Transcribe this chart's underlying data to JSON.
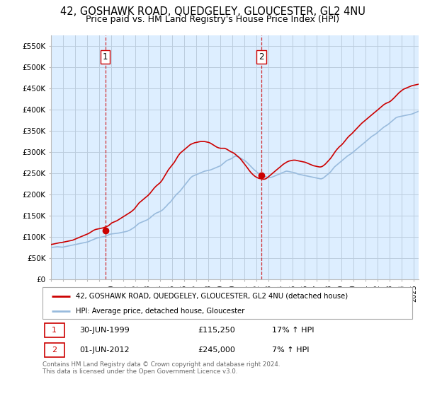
{
  "title": "42, GOSHAWK ROAD, QUEDGELEY, GLOUCESTER, GL2 4NU",
  "subtitle": "Price paid vs. HM Land Registry's House Price Index (HPI)",
  "title_fontsize": 10.5,
  "subtitle_fontsize": 9,
  "ylim": [
    0,
    575000
  ],
  "yticks": [
    0,
    50000,
    100000,
    150000,
    200000,
    250000,
    300000,
    350000,
    400000,
    450000,
    500000,
    550000
  ],
  "ytick_labels": [
    "£0",
    "£50K",
    "£100K",
    "£150K",
    "£200K",
    "£250K",
    "£300K",
    "£350K",
    "£400K",
    "£450K",
    "£500K",
    "£550K"
  ],
  "purchase1_year": 1999,
  "purchase1_month": 6,
  "purchase1_day": 30,
  "purchase1_price": 115250,
  "purchase2_year": 2012,
  "purchase2_month": 6,
  "purchase2_day": 1,
  "purchase2_price": 245000,
  "legend_line1": "42, GOSHAWK ROAD, QUEDGELEY, GLOUCESTER, GL2 4NU (detached house)",
  "legend_line2": "HPI: Average price, detached house, Gloucester",
  "table_row1": [
    "1",
    "30-JUN-1999",
    "£115,250",
    "17% ↑ HPI"
  ],
  "table_row2": [
    "2",
    "01-JUN-2012",
    "£245,000",
    "7% ↑ HPI"
  ],
  "footer": "Contains HM Land Registry data © Crown copyright and database right 2024.\nThis data is licensed under the Open Government Licence v3.0.",
  "red_color": "#cc0000",
  "blue_color": "#99bbdd",
  "blue_fill": "#ddeeff",
  "vline_color": "#cc0000",
  "background_color": "#ddeeff",
  "grid_color": "#bbccdd",
  "hpi_data_monthly": {
    "start_year": 1995,
    "start_month": 1,
    "values": [
      75000,
      75200,
      75500,
      75800,
      76000,
      76200,
      76500,
      76300,
      76100,
      75900,
      75700,
      75500,
      76000,
      76500,
      77000,
      77500,
      78000,
      78500,
      79000,
      79500,
      80000,
      80500,
      81000,
      81500,
      82000,
      82500,
      83000,
      83500,
      84000,
      84500,
      85000,
      85500,
      86000,
      86500,
      87000,
      87500,
      88000,
      89000,
      90000,
      91000,
      92000,
      93000,
      94000,
      95000,
      96000,
      97000,
      97500,
      98000,
      98500,
      99000,
      99500,
      100000,
      100500,
      101000,
      102000,
      103000,
      104000,
      105000,
      106000,
      106500,
      107000,
      107200,
      107500,
      107800,
      108000,
      108300,
      108700,
      109000,
      109500,
      110000,
      110500,
      111000,
      111500,
      112000,
      112500,
      113000,
      114000,
      115000,
      116000,
      117500,
      119000,
      120500,
      122000,
      124000,
      126000,
      128000,
      130000,
      132000,
      133000,
      134000,
      135000,
      136000,
      137000,
      138000,
      139000,
      140000,
      141500,
      143000,
      145000,
      147000,
      149000,
      151000,
      153000,
      154500,
      156000,
      157000,
      158000,
      159000,
      160000,
      161500,
      163000,
      165000,
      167500,
      170000,
      172000,
      175000,
      178000,
      180000,
      182000,
      185000,
      188000,
      191000,
      194000,
      197000,
      200000,
      202000,
      204000,
      206500,
      209000,
      212000,
      215000,
      218000,
      221000,
      224000,
      227000,
      230000,
      233000,
      236000,
      239000,
      241000,
      243000,
      244000,
      245000,
      246000,
      247000,
      248000,
      249000,
      250000,
      251000,
      252000,
      253000,
      254000,
      255000,
      255500,
      256000,
      256500,
      257000,
      257500,
      258000,
      259000,
      260000,
      261000,
      262000,
      263000,
      264000,
      265000,
      266000,
      267000,
      268000,
      270000,
      272000,
      274000,
      276000,
      278000,
      280000,
      281000,
      282000,
      283000,
      284000,
      285000,
      287000,
      288500,
      290000,
      290500,
      290000,
      289000,
      288000,
      287000,
      285500,
      284000,
      282500,
      281000,
      280000,
      278000,
      276000,
      273500,
      271000,
      268500,
      266000,
      263500,
      261000,
      259000,
      257000,
      255000,
      253000,
      251000,
      249000,
      247500,
      246000,
      245000,
      244000,
      243000,
      242000,
      241500,
      241000,
      240500,
      240000,
      240000,
      240500,
      241000,
      242000,
      243000,
      244000,
      245000,
      246000,
      247000,
      248000,
      249000,
      250000,
      251000,
      252000,
      253000,
      254000,
      255000,
      255000,
      254500,
      254000,
      253500,
      253000,
      252500,
      252000,
      251500,
      251000,
      250000,
      249000,
      248000,
      247500,
      247000,
      246500,
      246000,
      245500,
      245000,
      244500,
      244000,
      243500,
      243000,
      242500,
      242000,
      241500,
      241000,
      240500,
      240000,
      239500,
      239000,
      238500,
      238000,
      237500,
      237000,
      237000,
      238000,
      239000,
      241000,
      243000,
      245000,
      247000,
      249000,
      251000,
      253000,
      256000,
      259000,
      262000,
      265000,
      267000,
      269000,
      271000,
      273000,
      275000,
      277000,
      279000,
      281000,
      283000,
      285000,
      287000,
      289000,
      291000,
      292500,
      294000,
      295500,
      297000,
      299000,
      301000,
      303000,
      305000,
      307000,
      309000,
      311000,
      313000,
      315000,
      317000,
      319000,
      321000,
      323000,
      325000,
      327000,
      329000,
      331000,
      333000,
      335000,
      337000,
      338500,
      340000,
      341500,
      343000,
      345000,
      347000,
      349000,
      351000,
      353000,
      355000,
      357000,
      359000,
      360500,
      362000,
      363500,
      365000,
      367000,
      369000,
      371000,
      373000,
      375000,
      377000,
      379000,
      381000,
      382000,
      383000,
      383500,
      384000,
      384500,
      385000,
      385500,
      386000,
      386500,
      387000,
      387500,
      388000,
      388500,
      389000,
      389500,
      390000,
      391000,
      392000,
      393000,
      394000,
      395000,
      396000,
      397000,
      398000,
      399000,
      400000,
      401000,
      402000,
      403000,
      404000,
      405500,
      407000,
      409000,
      411000,
      413000,
      415000,
      417500,
      420000,
      422500,
      425000,
      427000,
      429000,
      431000,
      433000,
      435000,
      437000,
      439000,
      441000,
      442500,
      444000,
      445500,
      447000,
      448500,
      450000,
      451000,
      452000,
      453500,
      455000,
      457000,
      459000,
      461000,
      463000,
      465000,
      467000,
      469000,
      471000,
      472500,
      474000,
      475000,
      476000,
      476000,
      476000,
      475000,
      474000,
      472000,
      470000,
      468000,
      466000,
      464000,
      462500,
      461000,
      460000,
      459500,
      459000,
      458500,
      458000,
      457500,
      457000,
      456500,
      456000,
      455500,
      455000,
      454500,
      454000,
      453500,
      453000,
      452500,
      452000,
      451500,
      451000,
      451000,
      451000,
      452000,
      453000,
      454000,
      455000,
      456000,
      457000,
      458000,
      459000,
      460000,
      461000,
      462000
    ]
  },
  "price_data_monthly": {
    "start_year": 1995,
    "start_month": 1,
    "values": [
      82000,
      82500,
      83000,
      83500,
      84000,
      84500,
      85000,
      85500,
      86000,
      86200,
      86500,
      87000,
      87500,
      88000,
      88500,
      89000,
      89500,
      90000,
      90500,
      91000,
      91500,
      92000,
      93000,
      94000,
      95000,
      96000,
      97000,
      98000,
      99000,
      100000,
      101000,
      102000,
      103000,
      104000,
      105000,
      106000,
      107000,
      108000,
      109500,
      111000,
      112500,
      114000,
      115500,
      116500,
      117500,
      118000,
      118500,
      119000,
      119500,
      120000,
      120500,
      121000,
      121800,
      122500,
      123500,
      124500,
      125500,
      127000,
      129000,
      131000,
      133000,
      134000,
      135000,
      136000,
      137000,
      138000,
      139500,
      141000,
      142500,
      144000,
      145500,
      147000,
      148500,
      150000,
      151500,
      153000,
      154500,
      156000,
      157500,
      159000,
      161000,
      163000,
      165000,
      168000,
      171000,
      174000,
      177000,
      180000,
      182000,
      184000,
      186000,
      188000,
      190000,
      192000,
      194000,
      196000,
      198000,
      200500,
      203000,
      206000,
      209000,
      212000,
      215000,
      217500,
      220000,
      222000,
      224000,
      226000,
      228000,
      231000,
      234000,
      238000,
      242000,
      246000,
      250000,
      254000,
      258000,
      261000,
      264000,
      267000,
      270000,
      273000,
      276000,
      280000,
      284000,
      288000,
      292000,
      295000,
      298000,
      300000,
      302000,
      304000,
      306000,
      308000,
      310000,
      312000,
      314000,
      316000,
      318000,
      319000,
      320000,
      321000,
      322000,
      322500,
      323000,
      323500,
      324000,
      324500,
      325000,
      325000,
      325000,
      325000,
      325000,
      324500,
      324000,
      323500,
      323000,
      322000,
      321000,
      319500,
      318000,
      316500,
      315000,
      313500,
      312000,
      311000,
      310000,
      309500,
      309000,
      309000,
      309000,
      309000,
      309000,
      308000,
      307000,
      305500,
      304000,
      302500,
      301000,
      300000,
      299000,
      297500,
      296000,
      294000,
      292000,
      290000,
      288000,
      285500,
      283000,
      280000,
      277000,
      274000,
      271000,
      268000,
      265000,
      261500,
      258000,
      255000,
      252000,
      249500,
      247000,
      245000,
      243000,
      241500,
      240000,
      239000,
      238000,
      237500,
      237000,
      236500,
      236000,
      236000,
      236500,
      237500,
      239000,
      241000,
      243000,
      245000,
      247000,
      249000,
      251000,
      253000,
      255000,
      257000,
      259000,
      261000,
      263000,
      265000,
      267000,
      269000,
      271000,
      272500,
      274000,
      275500,
      277000,
      278000,
      279000,
      279500,
      280000,
      280500,
      281000,
      281000,
      281000,
      280500,
      280000,
      279500,
      279000,
      278500,
      278000,
      277500,
      277000,
      276500,
      276000,
      275000,
      274000,
      273000,
      272000,
      271000,
      270000,
      269000,
      268000,
      267500,
      267000,
      266500,
      266000,
      265500,
      265000,
      265000,
      265500,
      266500,
      268000,
      270000,
      272000,
      274500,
      277000,
      279500,
      282000,
      285000,
      288000,
      291500,
      295000,
      298500,
      302000,
      305000,
      308000,
      310500,
      313000,
      315000,
      317000,
      319500,
      322000,
      325000,
      328000,
      331000,
      334000,
      336500,
      339000,
      341000,
      343000,
      345500,
      348000,
      350500,
      353000,
      355500,
      358000,
      360500,
      363000,
      365500,
      368000,
      370000,
      372000,
      374000,
      376000,
      378000,
      380000,
      382000,
      384000,
      386000,
      388000,
      390000,
      392000,
      394000,
      396000,
      398000,
      400000,
      402000,
      404000,
      406000,
      408000,
      410000,
      412000,
      413500,
      415000,
      416000,
      417000,
      418000,
      419500,
      421000,
      423000,
      425000,
      427500,
      430000,
      432500,
      435000,
      437500,
      440000,
      442000,
      444000,
      446000,
      447500,
      449000,
      450000,
      451000,
      452000,
      453000,
      454000,
      455000,
      456000,
      457000,
      457500,
      458000,
      458500,
      459000,
      459500,
      460000,
      461000,
      462000,
      463000,
      464000,
      465500,
      467000,
      469000,
      471000,
      473000,
      475000,
      477500,
      480000,
      482000,
      484000,
      486500,
      489000,
      491500,
      494000,
      496000,
      498000,
      500000,
      502000,
      504000,
      506000,
      508000,
      510000,
      511500,
      513000,
      514000,
      515000,
      515500,
      516000,
      516000,
      516000,
      515500,
      515000,
      514000,
      512500,
      511000,
      509500,
      508000,
      507000,
      506000,
      505500,
      505000,
      505000,
      505500,
      506000,
      507500,
      509000,
      511000,
      513000,
      515000,
      517000,
      519000,
      521000,
      522500,
      524000,
      525000,
      526000,
      526000,
      526000,
      524500,
      523000,
      521000,
      518500,
      516000,
      513000,
      510000,
      507500,
      505000,
      503000,
      501500,
      500000,
      499000,
      498500,
      498000,
      498000,
      498500,
      499000,
      500000,
      501000,
      502000,
      503000,
      504500,
      506000,
      508000,
      510000,
      512000,
      514000,
      516000
    ]
  }
}
